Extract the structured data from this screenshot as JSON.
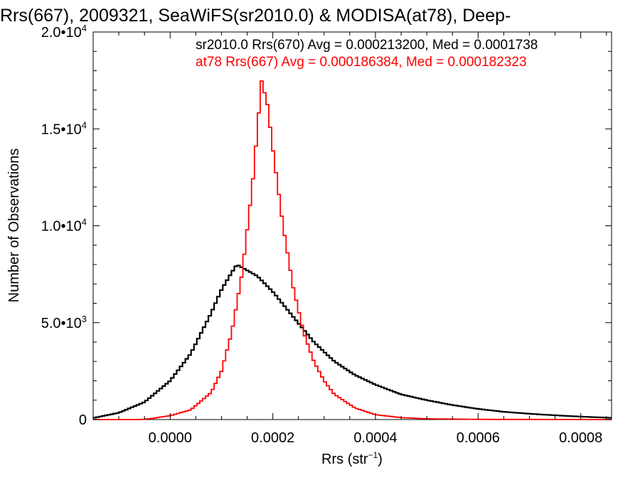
{
  "chart_data": {
    "type": "line",
    "title": "Rrs(667), 2009321, SeaWiFS(sr2010.0) & MODISA(at78), Deep-",
    "xlabel": "Rrs (str",
    "xlabel_sup": "−1",
    "xlabel_end": ")",
    "ylabel": "Number of Observations",
    "xlim": [
      -0.00015,
      0.00086
    ],
    "ylim": [
      0,
      20000
    ],
    "x_ticks": [
      {
        "value": 0.0,
        "label": "0.0000"
      },
      {
        "value": 0.0002,
        "label": "0.0002"
      },
      {
        "value": 0.0004,
        "label": "0.0004"
      },
      {
        "value": 0.0006,
        "label": "0.0006"
      },
      {
        "value": 0.0008,
        "label": "0.0008"
      }
    ],
    "y_ticks": [
      {
        "value": 0,
        "mant": "0",
        "exp": ""
      },
      {
        "value": 5000,
        "mant": "5.0•10",
        "exp": "3"
      },
      {
        "value": 10000,
        "mant": "1.0•10",
        "exp": "4"
      },
      {
        "value": 15000,
        "mant": "1.5•10",
        "exp": "4"
      },
      {
        "value": 20000,
        "mant": "2.0•10",
        "exp": "4"
      }
    ],
    "grid": false,
    "legend_position": "top-right",
    "series": [
      {
        "name": "sr2010.0 Rrs(670) Avg = 0.000213200, Med = 0.0001738",
        "color": "#000000",
        "style": "step",
        "points": [
          [
            -0.00015,
            80
          ],
          [
            -0.0001,
            350
          ],
          [
            -5e-05,
            900
          ],
          [
            0.0,
            2000
          ],
          [
            4e-05,
            3400
          ],
          [
            8e-05,
            5500
          ],
          [
            0.0001,
            6700
          ],
          [
            0.00012,
            7600
          ],
          [
            0.00013,
            8000
          ],
          [
            0.00015,
            7700
          ],
          [
            0.00017,
            7400
          ],
          [
            0.0002,
            6600
          ],
          [
            0.00024,
            5300
          ],
          [
            0.00028,
            4000
          ],
          [
            0.00032,
            3000
          ],
          [
            0.00036,
            2300
          ],
          [
            0.0004,
            1800
          ],
          [
            0.00045,
            1300
          ],
          [
            0.0005,
            1000
          ],
          [
            0.00055,
            750
          ],
          [
            0.0006,
            550
          ],
          [
            0.00065,
            400
          ],
          [
            0.0007,
            300
          ],
          [
            0.00075,
            220
          ],
          [
            0.0008,
            150
          ],
          [
            0.00086,
            90
          ]
        ]
      },
      {
        "name": "at78 Rrs(667) Avg = 0.000186384, Med = 0.000182323",
        "color": "#ff0000",
        "style": "step",
        "points": [
          [
            -0.00015,
            0
          ],
          [
            -6e-05,
            0
          ],
          [
            -4e-05,
            40
          ],
          [
            0.0,
            200
          ],
          [
            4e-05,
            500
          ],
          [
            8e-05,
            1400
          ],
          [
            0.0001,
            2500
          ],
          [
            0.00012,
            4500
          ],
          [
            0.00014,
            7500
          ],
          [
            0.00016,
            12000
          ],
          [
            0.00017,
            15000
          ],
          [
            0.000178,
            17500
          ],
          [
            0.00019,
            16200
          ],
          [
            0.0002,
            14000
          ],
          [
            0.00022,
            10000
          ],
          [
            0.00024,
            6800
          ],
          [
            0.00026,
            4500
          ],
          [
            0.00028,
            3000
          ],
          [
            0.0003,
            2000
          ],
          [
            0.00032,
            1300
          ],
          [
            0.00036,
            600
          ],
          [
            0.0004,
            250
          ],
          [
            0.00045,
            100
          ],
          [
            0.0005,
            40
          ],
          [
            0.0006,
            10
          ],
          [
            0.00086,
            0
          ]
        ]
      }
    ]
  }
}
